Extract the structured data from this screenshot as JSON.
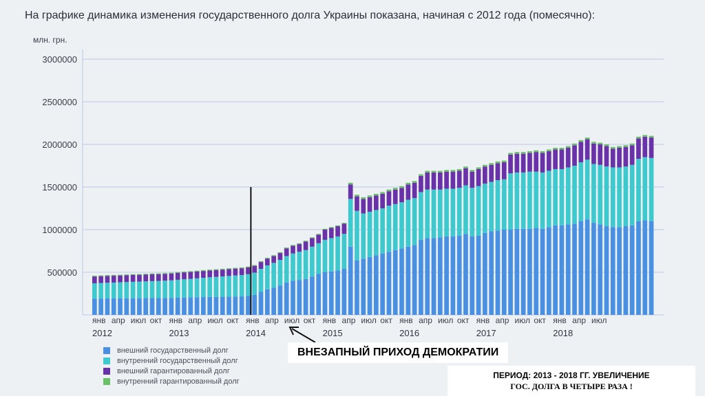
{
  "title": "На графике динамика изменения государственного долга Украины показана, начиная с 2012 года (помесячно):",
  "annotation": "ВНЕЗАПНЫЙ ПРИХОД ДЕМОКРАТИИ",
  "footnote": {
    "line1": "ПЕРИОД: 2013 - 2018 ГГ. УВЕЛИЧЕНИЕ",
    "line2": "ГОС. ДОЛГА В ЧЕТЫРЕ РАЗА !"
  },
  "colors": {
    "external_state": "#4a90e2",
    "internal_state": "#3ec9cf",
    "external_guaranteed": "#6a32a8",
    "internal_guaranteed": "#6abf69",
    "grid": "#b9c6e6",
    "marker": "#111111"
  },
  "chart_data": {
    "type": "bar",
    "stacked": true,
    "ylabel": "млн. грн.",
    "ylim": [
      0,
      3000000
    ],
    "yticks": [
      500000,
      1000000,
      1500000,
      2000000,
      2500000,
      3000000
    ],
    "ytick_labels": [
      "500000",
      "1000000",
      "1500000",
      "2000000",
      "2500000",
      "3000000"
    ],
    "xtick_labels": [
      "янв",
      "апр",
      "июл",
      "окт",
      "янв",
      "апр",
      "июл",
      "окт",
      "янв",
      "апр",
      "июл",
      "окт",
      "янв",
      "апр",
      "июл",
      "окт",
      "янв",
      "апр",
      "июл",
      "окт",
      "янв",
      "апр",
      "июл",
      "окт",
      "янв",
      "апр",
      "июл"
    ],
    "year_labels": [
      "2012",
      "2013",
      "2014",
      "2015",
      "2016",
      "2017",
      "2018"
    ],
    "marker_month_index": 25,
    "series": [
      {
        "name": "внешний государственный долг",
        "values": [
          190000,
          192000,
          193000,
          193000,
          194000,
          195000,
          196000,
          196000,
          197000,
          198000,
          198000,
          199000,
          200000,
          202000,
          204000,
          205000,
          207000,
          209000,
          211000,
          212000,
          213000,
          215000,
          216000,
          217000,
          222000,
          235000,
          270000,
          300000,
          320000,
          345000,
          380000,
          400000,
          410000,
          420000,
          450000,
          480000,
          500000,
          510000,
          520000,
          540000,
          800000,
          640000,
          660000,
          680000,
          700000,
          720000,
          740000,
          760000,
          780000,
          800000,
          820000,
          880000,
          900000,
          900000,
          910000,
          920000,
          920000,
          930000,
          950000,
          920000,
          930000,
          960000,
          980000,
          990000,
          1000000,
          1000000,
          1010000,
          1010000,
          1010000,
          1020000,
          1010000,
          1030000,
          1050000,
          1050000,
          1060000,
          1070000,
          1100000,
          1120000,
          1080000,
          1060000,
          1040000,
          1030000,
          1030000,
          1040000,
          1050000,
          1100000,
          1110000,
          1100000
        ]
      },
      {
        "name": "внутренний государственный долг",
        "values": [
          180000,
          182000,
          184000,
          186000,
          188000,
          190000,
          192000,
          194000,
          196000,
          198000,
          200000,
          202000,
          205000,
          210000,
          214000,
          218000,
          222000,
          226000,
          230000,
          234000,
          238000,
          242000,
          246000,
          250000,
          255000,
          260000,
          270000,
          280000,
          290000,
          300000,
          310000,
          320000,
          330000,
          340000,
          350000,
          360000,
          380000,
          390000,
          400000,
          410000,
          560000,
          580000,
          530000,
          530000,
          530000,
          530000,
          540000,
          540000,
          540000,
          550000,
          550000,
          560000,
          570000,
          570000,
          560000,
          560000,
          560000,
          560000,
          570000,
          570000,
          580000,
          580000,
          580000,
          590000,
          590000,
          660000,
          660000,
          660000,
          670000,
          660000,
          660000,
          660000,
          660000,
          660000,
          670000,
          680000,
          690000,
          700000,
          690000,
          700000,
          700000,
          700000,
          700000,
          700000,
          710000,
          730000,
          740000,
          740000
        ]
      },
      {
        "name": "внешний гарантированный долг",
        "values": [
          80000,
          80000,
          80000,
          80000,
          80000,
          80000,
          80000,
          80000,
          80000,
          80000,
          80000,
          80000,
          80000,
          80000,
          80000,
          80000,
          80000,
          80000,
          80000,
          80000,
          80000,
          80000,
          80000,
          80000,
          80000,
          80000,
          80000,
          80000,
          80000,
          80000,
          90000,
          90000,
          90000,
          100000,
          100000,
          100000,
          120000,
          120000,
          120000,
          120000,
          170000,
          170000,
          170000,
          170000,
          170000,
          170000,
          170000,
          170000,
          170000,
          180000,
          180000,
          190000,
          200000,
          200000,
          200000,
          200000,
          200000,
          200000,
          200000,
          190000,
          200000,
          200000,
          200000,
          200000,
          200000,
          220000,
          220000,
          220000,
          220000,
          230000,
          230000,
          230000,
          230000,
          230000,
          230000,
          240000,
          240000,
          240000,
          240000,
          240000,
          240000,
          220000,
          230000,
          230000,
          230000,
          240000,
          240000,
          240000
        ]
      },
      {
        "name": "внутренний гарантированный долг",
        "values": [
          10000,
          10000,
          10000,
          10000,
          10000,
          10000,
          10000,
          10000,
          10000,
          10000,
          10000,
          10000,
          10000,
          10000,
          10000,
          10000,
          10000,
          10000,
          10000,
          10000,
          10000,
          10000,
          10000,
          10000,
          10000,
          10000,
          10000,
          10000,
          10000,
          10000,
          10000,
          10000,
          10000,
          10000,
          10000,
          10000,
          10000,
          10000,
          10000,
          10000,
          20000,
          20000,
          20000,
          20000,
          20000,
          20000,
          20000,
          20000,
          20000,
          20000,
          20000,
          20000,
          20000,
          20000,
          20000,
          20000,
          20000,
          20000,
          20000,
          20000,
          20000,
          20000,
          20000,
          20000,
          20000,
          20000,
          20000,
          20000,
          20000,
          20000,
          20000,
          20000,
          20000,
          20000,
          20000,
          20000,
          20000,
          20000,
          20000,
          20000,
          20000,
          20000,
          20000,
          20000,
          20000,
          20000,
          20000,
          20000
        ]
      }
    ]
  }
}
